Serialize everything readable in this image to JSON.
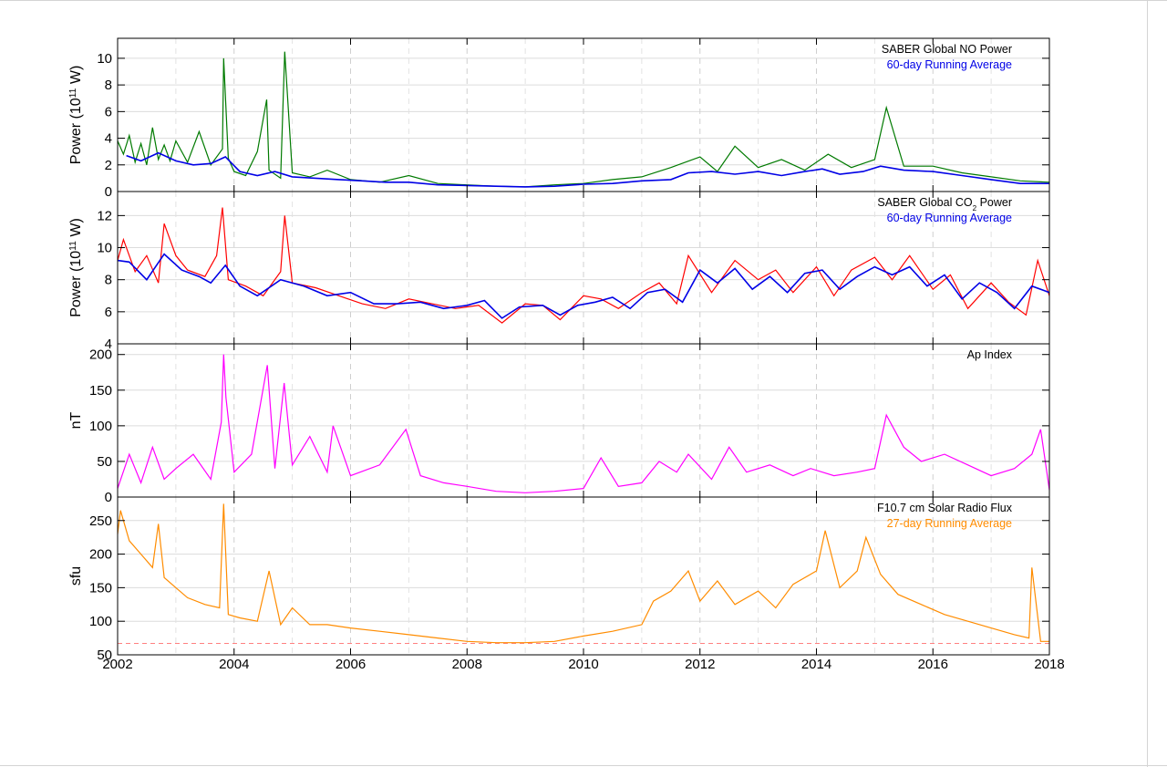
{
  "chart_data": [
    {
      "type": "line",
      "ylabel": "Power (10¹¹ W)",
      "ylim": [
        0,
        11.5
      ],
      "xlim": [
        2002,
        2018
      ],
      "yticks": [
        0,
        2,
        4,
        6,
        8,
        10
      ],
      "grid": true,
      "legend_position": "top-right",
      "series": [
        {
          "name": "SABER Global NO Power",
          "color": "#007a00",
          "x": [
            2002.0,
            2002.1,
            2002.2,
            2002.3,
            2002.4,
            2002.5,
            2002.6,
            2002.7,
            2002.8,
            2002.9,
            2003.0,
            2003.2,
            2003.4,
            2003.6,
            2003.8,
            2003.82,
            2003.9,
            2004.0,
            2004.2,
            2004.4,
            2004.56,
            2004.6,
            2004.8,
            2004.87,
            2005.0,
            2005.3,
            2005.6,
            2006.0,
            2006.5,
            2007.0,
            2007.5,
            2008.0,
            2008.5,
            2009.0,
            2009.5,
            2010.0,
            2010.5,
            2011.0,
            2011.5,
            2012.0,
            2012.3,
            2012.6,
            2013.0,
            2013.4,
            2013.8,
            2014.2,
            2014.6,
            2015.0,
            2015.2,
            2015.5,
            2016.0,
            2016.5,
            2017.0,
            2017.5,
            2018.0
          ],
          "values": [
            3.8,
            2.8,
            4.2,
            2.2,
            3.6,
            2.0,
            4.8,
            2.4,
            3.5,
            2.3,
            3.8,
            2.2,
            4.5,
            2.0,
            3.2,
            10.0,
            2.5,
            1.5,
            1.2,
            3.0,
            6.9,
            1.6,
            1.0,
            10.5,
            1.4,
            1.1,
            1.6,
            0.9,
            0.7,
            1.2,
            0.6,
            0.5,
            0.4,
            0.35,
            0.5,
            0.6,
            0.9,
            1.1,
            1.8,
            2.6,
            1.5,
            3.4,
            1.8,
            2.4,
            1.6,
            2.8,
            1.8,
            2.4,
            6.3,
            1.9,
            1.9,
            1.4,
            1.1,
            0.8,
            0.7
          ]
        },
        {
          "name": "60-day Running Average",
          "color": "#0000e6",
          "x": [
            2002.15,
            2002.4,
            2002.7,
            2003.0,
            2003.3,
            2003.6,
            2003.85,
            2004.1,
            2004.4,
            2004.7,
            2005.0,
            2005.4,
            2005.8,
            2006.2,
            2006.6,
            2007.0,
            2007.5,
            2008.0,
            2008.5,
            2009.0,
            2009.5,
            2010.0,
            2010.5,
            2011.0,
            2011.5,
            2011.8,
            2012.2,
            2012.6,
            2013.0,
            2013.4,
            2013.8,
            2014.1,
            2014.4,
            2014.8,
            2015.1,
            2015.5,
            2016.0,
            2016.5,
            2017.0,
            2017.5,
            2018.0
          ],
          "values": [
            2.7,
            2.3,
            2.9,
            2.3,
            2.0,
            2.1,
            2.6,
            1.5,
            1.2,
            1.5,
            1.1,
            1.0,
            0.9,
            0.8,
            0.7,
            0.7,
            0.5,
            0.45,
            0.4,
            0.35,
            0.4,
            0.55,
            0.6,
            0.8,
            0.9,
            1.4,
            1.5,
            1.3,
            1.5,
            1.2,
            1.5,
            1.7,
            1.3,
            1.5,
            1.9,
            1.6,
            1.5,
            1.2,
            0.9,
            0.6,
            0.6
          ]
        }
      ]
    },
    {
      "type": "line",
      "ylabel": "Power (10¹¹ W)",
      "ylim": [
        4,
        13.5
      ],
      "xlim": [
        2002,
        2018
      ],
      "yticks": [
        4,
        6,
        8,
        10,
        12
      ],
      "grid": true,
      "legend_position": "top-right",
      "series": [
        {
          "name": "SABER Global CO₂ Power",
          "color": "#ff0000",
          "x": [
            2002.0,
            2002.1,
            2002.3,
            2002.5,
            2002.7,
            2002.8,
            2003.0,
            2003.2,
            2003.5,
            2003.7,
            2003.8,
            2003.9,
            2004.2,
            2004.5,
            2004.8,
            2004.87,
            2005.0,
            2005.4,
            2005.8,
            2006.2,
            2006.6,
            2007.0,
            2007.4,
            2007.8,
            2008.2,
            2008.6,
            2009.0,
            2009.3,
            2009.6,
            2010.0,
            2010.3,
            2010.6,
            2011.0,
            2011.3,
            2011.6,
            2011.8,
            2012.2,
            2012.6,
            2013.0,
            2013.3,
            2013.6,
            2014.0,
            2014.3,
            2014.6,
            2015.0,
            2015.3,
            2015.6,
            2016.0,
            2016.3,
            2016.6,
            2017.0,
            2017.3,
            2017.6,
            2017.8,
            2018.0
          ],
          "values": [
            9.2,
            10.5,
            8.5,
            9.5,
            7.8,
            11.5,
            9.5,
            8.6,
            8.2,
            9.5,
            12.5,
            8.0,
            7.6,
            7.0,
            8.5,
            12.0,
            7.8,
            7.5,
            7.0,
            6.5,
            6.2,
            6.8,
            6.5,
            6.2,
            6.4,
            5.3,
            6.5,
            6.4,
            5.5,
            7.0,
            6.8,
            6.2,
            7.2,
            7.8,
            6.5,
            9.5,
            7.2,
            9.2,
            8.0,
            8.6,
            7.2,
            8.8,
            7.0,
            8.6,
            9.4,
            8.0,
            9.5,
            7.4,
            8.3,
            6.2,
            7.8,
            6.6,
            5.8,
            9.2,
            7.0
          ]
        },
        {
          "name": "60-day Running Average",
          "color": "#0000e6",
          "x": [
            2002.0,
            2002.2,
            2002.5,
            2002.8,
            2003.1,
            2003.4,
            2003.6,
            2003.85,
            2004.1,
            2004.4,
            2004.8,
            2005.2,
            2005.6,
            2006.0,
            2006.4,
            2006.8,
            2007.2,
            2007.6,
            2008.0,
            2008.3,
            2008.6,
            2008.9,
            2009.3,
            2009.6,
            2009.9,
            2010.2,
            2010.5,
            2010.8,
            2011.1,
            2011.4,
            2011.7,
            2012.0,
            2012.3,
            2012.6,
            2012.9,
            2013.2,
            2013.5,
            2013.8,
            2014.1,
            2014.4,
            2014.7,
            2015.0,
            2015.3,
            2015.6,
            2015.9,
            2016.2,
            2016.5,
            2016.8,
            2017.1,
            2017.4,
            2017.7,
            2018.0
          ],
          "values": [
            9.2,
            9.1,
            8.0,
            9.6,
            8.6,
            8.2,
            7.8,
            8.9,
            7.6,
            7.0,
            8.0,
            7.6,
            7.0,
            7.2,
            6.5,
            6.5,
            6.6,
            6.2,
            6.4,
            6.7,
            5.6,
            6.3,
            6.4,
            5.8,
            6.4,
            6.6,
            6.9,
            6.2,
            7.2,
            7.4,
            6.6,
            8.6,
            7.8,
            8.7,
            7.4,
            8.2,
            7.2,
            8.4,
            8.6,
            7.4,
            8.2,
            8.8,
            8.3,
            8.8,
            7.6,
            8.3,
            6.8,
            7.8,
            7.2,
            6.2,
            7.6,
            7.2
          ]
        }
      ]
    },
    {
      "type": "line",
      "ylabel": "nT",
      "ylim": [
        0,
        215
      ],
      "xlim": [
        2002,
        2018
      ],
      "yticks": [
        0,
        50,
        100,
        150,
        200
      ],
      "grid": true,
      "legend_position": "top-right",
      "series": [
        {
          "name": "Ap Index",
          "color": "#ff00ff",
          "x": [
            2002.0,
            2002.2,
            2002.4,
            2002.6,
            2002.8,
            2003.0,
            2003.3,
            2003.6,
            2003.78,
            2003.82,
            2003.86,
            2004.0,
            2004.3,
            2004.57,
            2004.7,
            2004.86,
            2005.0,
            2005.3,
            2005.6,
            2005.7,
            2006.0,
            2006.5,
            2006.95,
            2007.2,
            2007.6,
            2008.0,
            2008.5,
            2009.0,
            2009.5,
            2010.0,
            2010.3,
            2010.6,
            2011.0,
            2011.3,
            2011.6,
            2011.8,
            2012.2,
            2012.5,
            2012.8,
            2013.2,
            2013.6,
            2013.9,
            2014.3,
            2014.7,
            2015.0,
            2015.2,
            2015.5,
            2015.8,
            2016.2,
            2016.6,
            2017.0,
            2017.4,
            2017.7,
            2017.85,
            2018.0
          ],
          "values": [
            12,
            60,
            20,
            70,
            25,
            40,
            60,
            25,
            105,
            200,
            140,
            35,
            60,
            185,
            40,
            160,
            45,
            85,
            35,
            100,
            30,
            45,
            95,
            30,
            20,
            15,
            8,
            6,
            8,
            12,
            55,
            15,
            20,
            50,
            35,
            60,
            25,
            70,
            35,
            45,
            30,
            40,
            30,
            35,
            40,
            115,
            70,
            50,
            60,
            45,
            30,
            40,
            60,
            95,
            10
          ]
        }
      ]
    },
    {
      "type": "line",
      "ylabel": "sfu",
      "ylim": [
        50,
        285
      ],
      "xlim": [
        2002,
        2018
      ],
      "yticks": [
        50,
        100,
        150,
        200,
        250
      ],
      "grid": true,
      "legend_position": "top-right",
      "reference_line": 67,
      "series": [
        {
          "name": "F10.7 cm Solar Radio Flux",
          "color": "#ff8c00",
          "x": [
            2002.0,
            2002.05,
            2002.2,
            2002.4,
            2002.6,
            2002.7,
            2002.8,
            2003.0,
            2003.2,
            2003.5,
            2003.75,
            2003.82,
            2003.9,
            2004.1,
            2004.4,
            2004.6,
            2004.8,
            2005.0,
            2005.3,
            2005.6,
            2006.0,
            2006.5,
            2007.0,
            2007.5,
            2008.0,
            2008.5,
            2009.0,
            2009.5,
            2010.0,
            2010.5,
            2011.0,
            2011.2,
            2011.5,
            2011.8,
            2012.0,
            2012.3,
            2012.6,
            2013.0,
            2013.3,
            2013.6,
            2014.0,
            2014.15,
            2014.4,
            2014.7,
            2014.85,
            2015.1,
            2015.4,
            2015.8,
            2016.2,
            2016.6,
            2017.0,
            2017.4,
            2017.65,
            2017.7,
            2017.85,
            2018.0
          ],
          "values": [
            230,
            265,
            220,
            200,
            180,
            245,
            165,
            150,
            135,
            125,
            120,
            275,
            110,
            105,
            100,
            175,
            95,
            120,
            95,
            95,
            90,
            85,
            80,
            75,
            70,
            68,
            68,
            70,
            78,
            85,
            95,
            130,
            145,
            175,
            130,
            160,
            125,
            145,
            120,
            155,
            175,
            235,
            150,
            175,
            225,
            170,
            140,
            125,
            110,
            100,
            90,
            80,
            75,
            180,
            70,
            70
          ]
        },
        {
          "name": "27-day Running Average",
          "color": "#ff8c00",
          "x": [],
          "values": []
        }
      ]
    }
  ],
  "panels": [
    {
      "legend": [
        "SABER Global NO Power",
        "60-day Running Average"
      ],
      "legend_colors": [
        "#000000",
        "#0000e6"
      ]
    },
    {
      "legend": [
        "SABER Global CO₂ Power",
        "60-day Running Average"
      ],
      "legend_colors": [
        "#000000",
        "#0000e6"
      ]
    },
    {
      "legend": [
        "Ap Index"
      ],
      "legend_colors": [
        "#000000"
      ]
    },
    {
      "legend": [
        "F10.7 cm Solar Radio Flux",
        "27-day Running Average"
      ],
      "legend_colors": [
        "#000000",
        "#ff8c00"
      ]
    }
  ],
  "xaxis": {
    "ticks": [
      "2002",
      "2004",
      "2006",
      "2008",
      "2010",
      "2012",
      "2014",
      "2016",
      "2018"
    ]
  }
}
